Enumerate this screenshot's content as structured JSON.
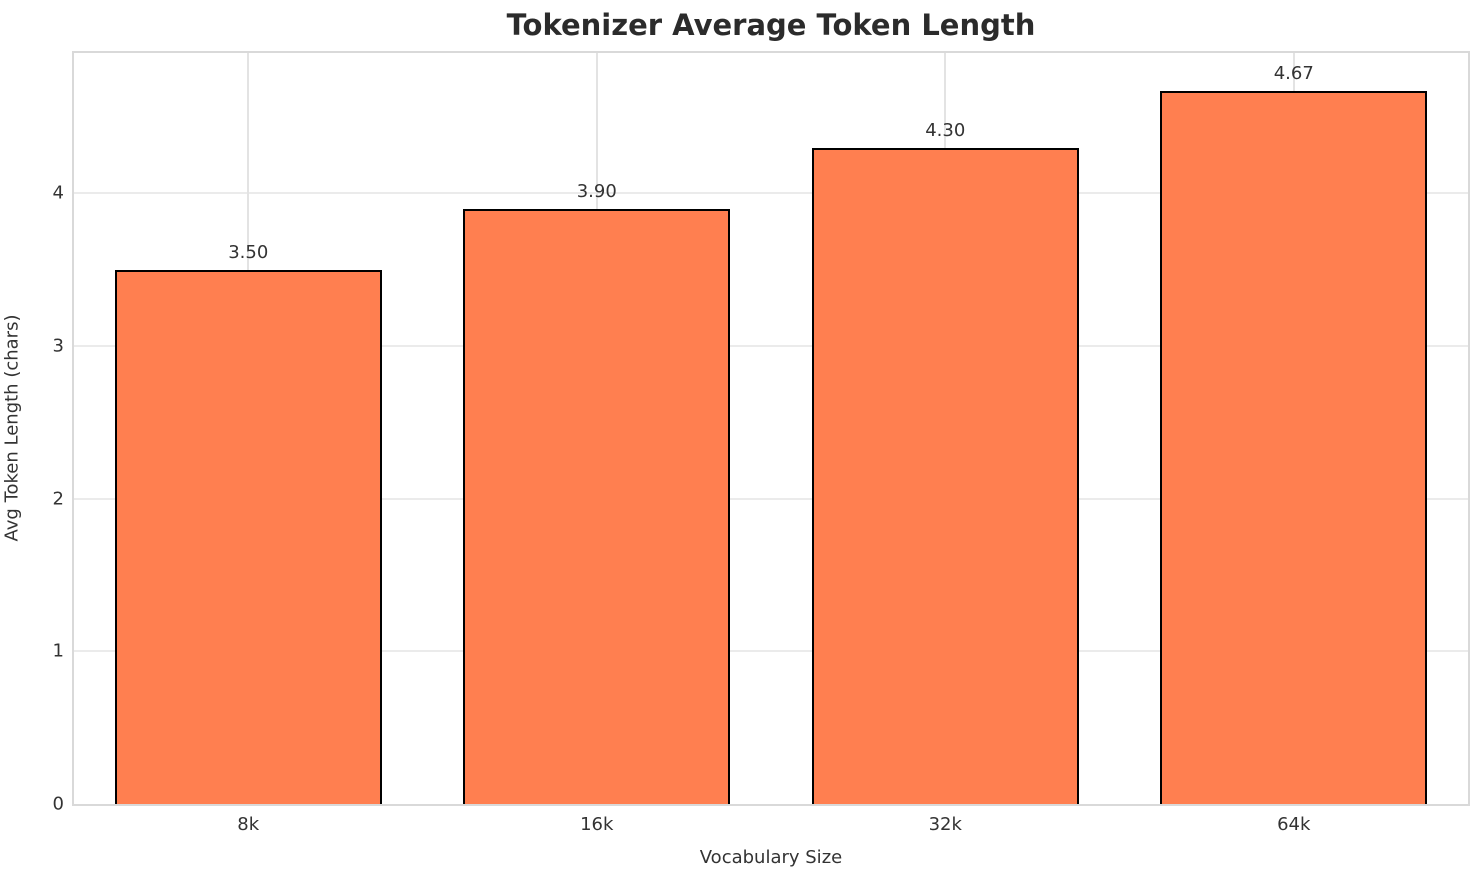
{
  "chart_data": {
    "type": "bar",
    "title": "Tokenizer Average Token Length",
    "xlabel": "Vocabulary Size",
    "ylabel": "Avg Token Length (chars)",
    "categories": [
      "8k",
      "16k",
      "32k",
      "64k"
    ],
    "values": [
      3.5,
      3.9,
      4.3,
      4.67
    ],
    "value_labels": [
      "3.50",
      "3.90",
      "4.30",
      "4.67"
    ],
    "yticks": [
      0,
      1,
      2,
      3,
      4
    ],
    "ylim": [
      0,
      4.92
    ],
    "grid": true,
    "legend": "none",
    "colors": {
      "bar_fill": "#FF7F50",
      "bar_edge": "#000000",
      "grid_horizontal": "#ebebeb",
      "grid_vertical": "#e3e3e3",
      "spine": "#d9d9d9",
      "text": "#333333",
      "title": "#2b2b2b",
      "background": "#ffffff"
    }
  }
}
